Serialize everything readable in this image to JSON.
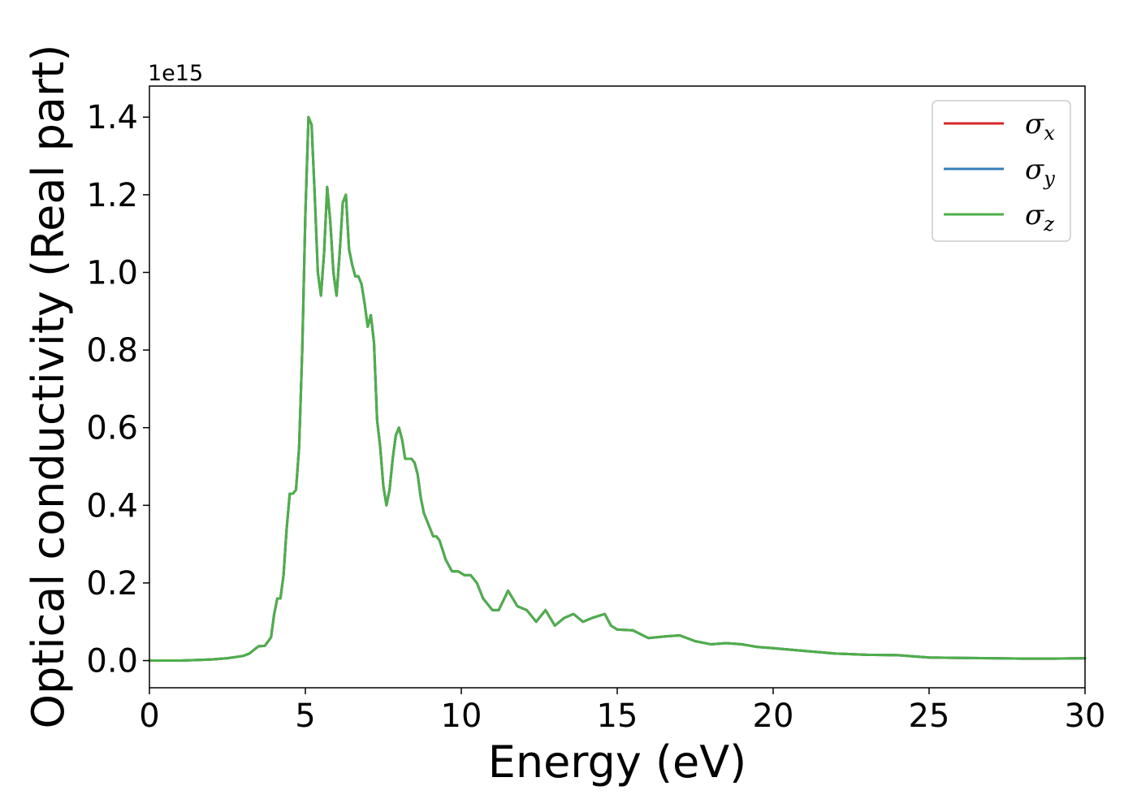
{
  "chart_data": {
    "type": "line",
    "title": "",
    "xlabel": "Energy (eV)",
    "ylabel": "Optical conductivity (Real part)",
    "y_offset_label": "1e15",
    "xlim": [
      0,
      30
    ],
    "ylim": [
      -0.07,
      1.48
    ],
    "x_ticks": [
      0,
      5,
      10,
      15,
      20,
      25,
      30
    ],
    "x_tick_labels": [
      "0",
      "5",
      "10",
      "15",
      "20",
      "25",
      "30"
    ],
    "y_ticks": [
      0.0,
      0.2,
      0.4,
      0.6,
      0.8,
      1.0,
      1.2,
      1.4
    ],
    "y_tick_labels": [
      "0.0",
      "0.2",
      "0.4",
      "0.6",
      "0.8",
      "1.0",
      "1.2",
      "1.4"
    ],
    "grid": false,
    "legend_position": "top-right",
    "x": [
      0,
      1,
      2,
      2.5,
      3,
      3.2,
      3.5,
      3.7,
      3.9,
      4.0,
      4.1,
      4.2,
      4.3,
      4.4,
      4.5,
      4.6,
      4.7,
      4.8,
      4.9,
      5.0,
      5.1,
      5.2,
      5.3,
      5.4,
      5.5,
      5.6,
      5.7,
      5.8,
      5.9,
      6.0,
      6.1,
      6.2,
      6.3,
      6.4,
      6.5,
      6.6,
      6.7,
      6.8,
      6.9,
      7.0,
      7.1,
      7.2,
      7.3,
      7.4,
      7.5,
      7.6,
      7.7,
      7.8,
      7.9,
      8.0,
      8.1,
      8.2,
      8.3,
      8.4,
      8.5,
      8.6,
      8.7,
      8.8,
      9.0,
      9.1,
      9.2,
      9.3,
      9.5,
      9.7,
      9.9,
      10.1,
      10.3,
      10.5,
      10.7,
      11.0,
      11.2,
      11.5,
      11.8,
      12.1,
      12.4,
      12.7,
      13.0,
      13.3,
      13.6,
      13.9,
      14.2,
      14.6,
      14.8,
      15.0,
      15.5,
      16.0,
      16.5,
      17.0,
      17.5,
      18.0,
      18.5,
      19.0,
      19.5,
      20.0,
      21.0,
      22.0,
      23.0,
      24.0,
      25.0,
      26.0,
      27.0,
      28.0,
      29.0,
      30.0
    ],
    "series": [
      {
        "name": "σx",
        "color": "#d62728",
        "values": [
          0.0,
          0.0,
          0.003,
          0.006,
          0.012,
          0.018,
          0.037,
          0.038,
          0.06,
          0.12,
          0.16,
          0.16,
          0.22,
          0.34,
          0.43,
          0.43,
          0.44,
          0.55,
          0.8,
          1.15,
          1.4,
          1.38,
          1.2,
          1.0,
          0.94,
          1.05,
          1.22,
          1.13,
          1.0,
          0.94,
          1.05,
          1.18,
          1.2,
          1.06,
          1.02,
          0.99,
          0.99,
          0.97,
          0.92,
          0.86,
          0.89,
          0.82,
          0.62,
          0.55,
          0.45,
          0.4,
          0.44,
          0.52,
          0.58,
          0.6,
          0.57,
          0.52,
          0.52,
          0.52,
          0.51,
          0.48,
          0.42,
          0.38,
          0.34,
          0.32,
          0.32,
          0.31,
          0.26,
          0.23,
          0.23,
          0.22,
          0.22,
          0.2,
          0.16,
          0.13,
          0.13,
          0.18,
          0.14,
          0.13,
          0.1,
          0.13,
          0.09,
          0.11,
          0.12,
          0.1,
          0.11,
          0.12,
          0.09,
          0.08,
          0.078,
          0.058,
          0.062,
          0.065,
          0.05,
          0.042,
          0.045,
          0.042,
          0.035,
          0.032,
          0.025,
          0.018,
          0.015,
          0.014,
          0.008,
          0.007,
          0.006,
          0.005,
          0.005,
          0.006
        ]
      },
      {
        "name": "σy",
        "color": "#377eb8",
        "values": [
          0.0,
          0.0,
          0.003,
          0.006,
          0.012,
          0.018,
          0.037,
          0.038,
          0.06,
          0.12,
          0.16,
          0.16,
          0.22,
          0.34,
          0.43,
          0.43,
          0.44,
          0.55,
          0.8,
          1.15,
          1.4,
          1.38,
          1.2,
          1.0,
          0.94,
          1.05,
          1.22,
          1.13,
          1.0,
          0.94,
          1.05,
          1.18,
          1.2,
          1.06,
          1.02,
          0.99,
          0.99,
          0.97,
          0.92,
          0.86,
          0.89,
          0.82,
          0.62,
          0.55,
          0.45,
          0.4,
          0.44,
          0.52,
          0.58,
          0.6,
          0.57,
          0.52,
          0.52,
          0.52,
          0.51,
          0.48,
          0.42,
          0.38,
          0.34,
          0.32,
          0.32,
          0.31,
          0.26,
          0.23,
          0.23,
          0.22,
          0.22,
          0.2,
          0.16,
          0.13,
          0.13,
          0.18,
          0.14,
          0.13,
          0.1,
          0.13,
          0.09,
          0.11,
          0.12,
          0.1,
          0.11,
          0.12,
          0.09,
          0.08,
          0.078,
          0.058,
          0.062,
          0.065,
          0.05,
          0.042,
          0.045,
          0.042,
          0.035,
          0.032,
          0.025,
          0.018,
          0.015,
          0.014,
          0.008,
          0.007,
          0.006,
          0.005,
          0.005,
          0.006
        ]
      },
      {
        "name": "σz",
        "color": "#4daf4a",
        "values": [
          0.0,
          0.0,
          0.003,
          0.006,
          0.012,
          0.018,
          0.037,
          0.038,
          0.06,
          0.12,
          0.16,
          0.16,
          0.22,
          0.34,
          0.43,
          0.43,
          0.44,
          0.55,
          0.8,
          1.15,
          1.4,
          1.38,
          1.2,
          1.0,
          0.94,
          1.05,
          1.22,
          1.13,
          1.0,
          0.94,
          1.05,
          1.18,
          1.2,
          1.06,
          1.02,
          0.99,
          0.99,
          0.97,
          0.92,
          0.86,
          0.89,
          0.82,
          0.62,
          0.55,
          0.45,
          0.4,
          0.44,
          0.52,
          0.58,
          0.6,
          0.57,
          0.52,
          0.52,
          0.52,
          0.51,
          0.48,
          0.42,
          0.38,
          0.34,
          0.32,
          0.32,
          0.31,
          0.26,
          0.23,
          0.23,
          0.22,
          0.22,
          0.2,
          0.16,
          0.13,
          0.13,
          0.18,
          0.14,
          0.13,
          0.1,
          0.13,
          0.09,
          0.11,
          0.12,
          0.1,
          0.11,
          0.12,
          0.09,
          0.08,
          0.078,
          0.058,
          0.062,
          0.065,
          0.05,
          0.042,
          0.045,
          0.042,
          0.035,
          0.032,
          0.025,
          0.018,
          0.015,
          0.014,
          0.008,
          0.007,
          0.006,
          0.005,
          0.005,
          0.006
        ]
      }
    ],
    "legend": [
      {
        "symbol": "σ",
        "sub": "x",
        "color": "#d62728"
      },
      {
        "symbol": "σ",
        "sub": "y",
        "color": "#377eb8"
      },
      {
        "symbol": "σ",
        "sub": "z",
        "color": "#4daf4a"
      }
    ]
  }
}
